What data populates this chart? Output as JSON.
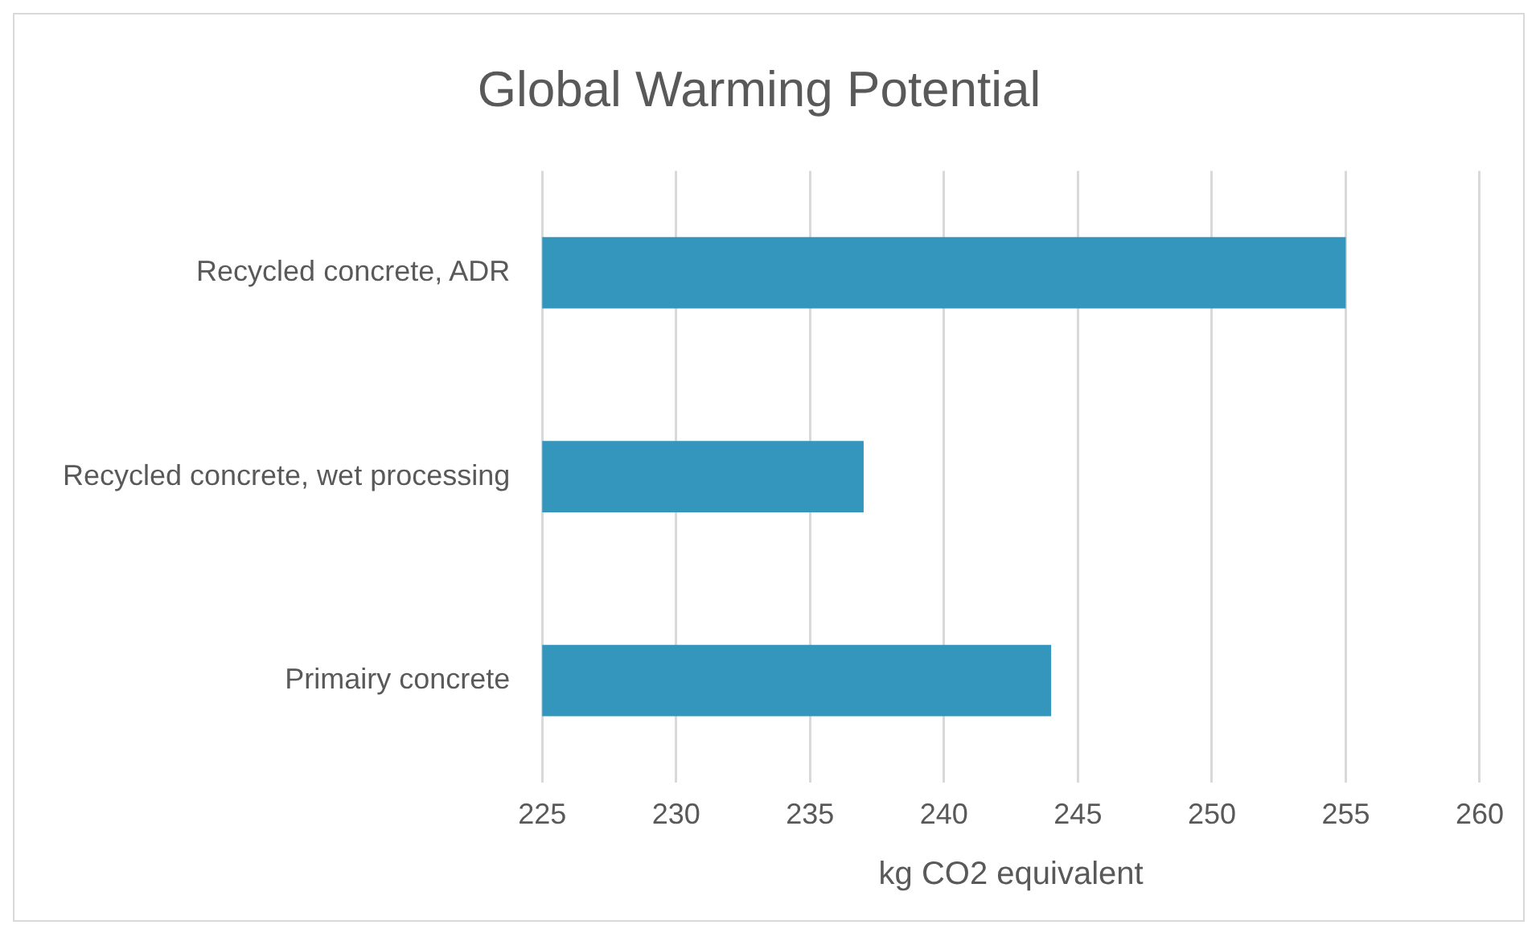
{
  "chart_data": {
    "type": "bar",
    "orientation": "horizontal",
    "title": "Global Warming Potential",
    "xlabel": "kg CO2 equivalent",
    "categories": [
      "Recycled concrete, ADR",
      "Recycled concrete, wet processing",
      "Primairy concrete"
    ],
    "values": [
      255,
      237,
      244
    ],
    "color": "#3496bc",
    "xlim": [
      225,
      260
    ],
    "xticks": [
      225,
      230,
      235,
      240,
      245,
      250,
      255,
      260
    ],
    "grid": "x",
    "legend": false
  }
}
